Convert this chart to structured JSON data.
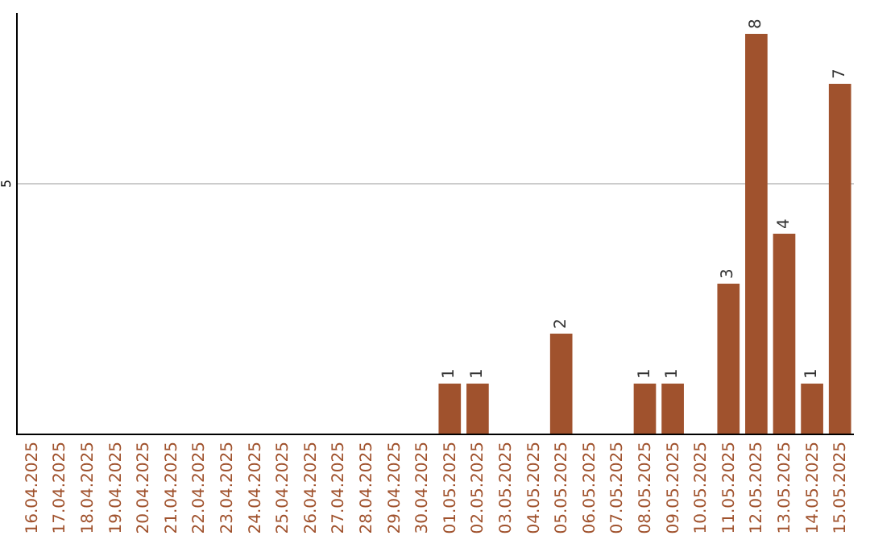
{
  "chart_data": {
    "type": "bar",
    "categories": [
      "16.04.2025",
      "17.04.2025",
      "18.04.2025",
      "19.04.2025",
      "20.04.2025",
      "21.04.2025",
      "22.04.2025",
      "23.04.2025",
      "24.04.2025",
      "25.04.2025",
      "26.04.2025",
      "27.04.2025",
      "28.04.2025",
      "29.04.2025",
      "30.04.2025",
      "01.05.2025",
      "02.05.2025",
      "03.05.2025",
      "04.05.2025",
      "05.05.2025",
      "06.05.2025",
      "07.05.2025",
      "08.05.2025",
      "09.05.2025",
      "10.05.2025",
      "11.05.2025",
      "12.05.2025",
      "13.05.2025",
      "14.05.2025",
      "15.05.2025"
    ],
    "values": [
      null,
      null,
      null,
      null,
      null,
      null,
      null,
      null,
      null,
      null,
      null,
      null,
      null,
      null,
      null,
      1,
      1,
      null,
      null,
      2,
      null,
      null,
      1,
      1,
      null,
      3,
      8,
      4,
      1,
      7
    ],
    "data_labels": true,
    "color": "#a0522d",
    "ref_lines": [
      {
        "axis": "y",
        "value": 5,
        "label": "5",
        "color": "#cccccc"
      }
    ]
  }
}
